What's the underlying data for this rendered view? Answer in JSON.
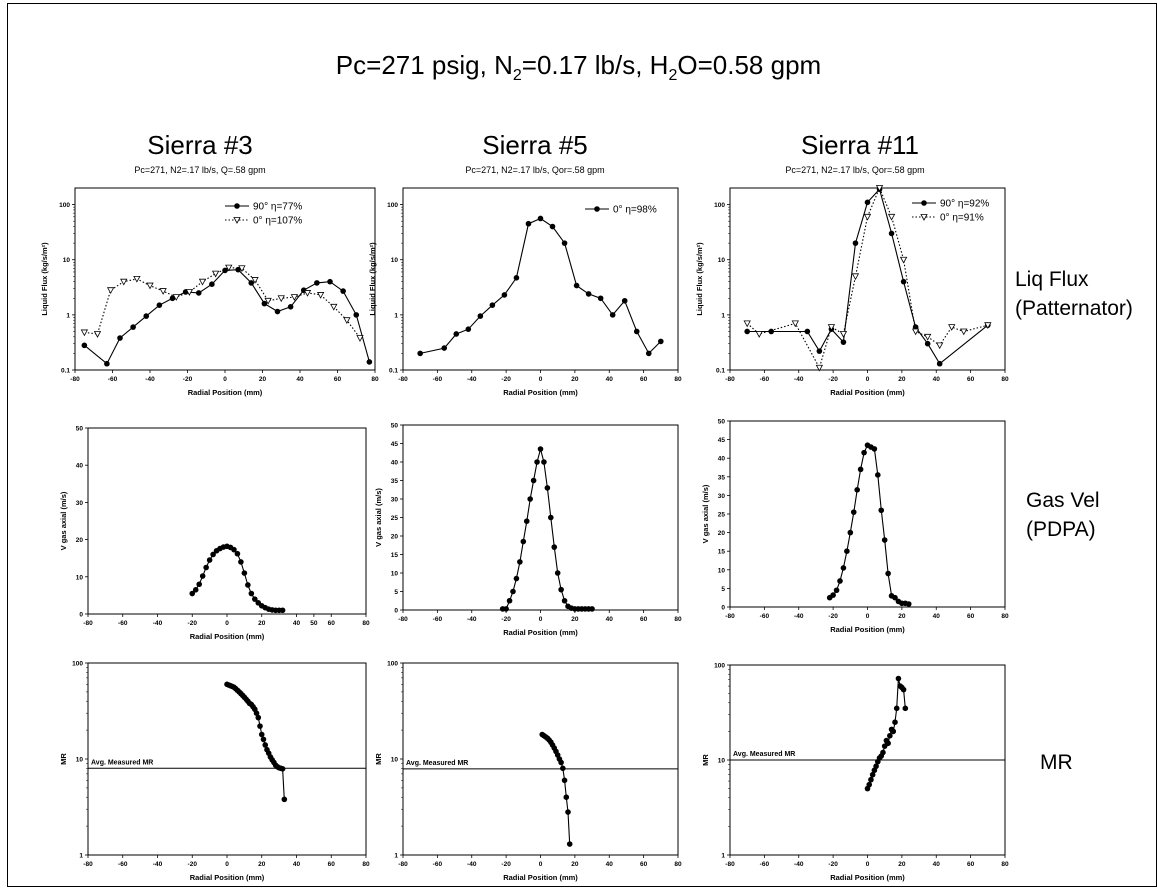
{
  "title": "Pc=271 psig, N2=0.17 lb/s, H2O=0.58 gpm",
  "title_parts": {
    "a": "Pc=271 psig, N",
    "b": "2",
    "c": "=0.17 lb/s, H",
    "d": "2",
    "e": "O=0.58 gpm"
  },
  "columns": [
    {
      "title": "Sierra #3",
      "subtitle": "Pc=271, N2=.17 lb/s, Q=.58 gpm"
    },
    {
      "title": "Sierra #5",
      "subtitle": "Pc=271, N2=.17 lb/s, Qor=.58 gpm"
    },
    {
      "title": "Sierra #11",
      "subtitle": "Pc=271, N2=.17 lb/s, Qor=.58 gpm"
    }
  ],
  "row_labels": [
    {
      "line1": "Liq Flux",
      "line2": "(Patternator)"
    },
    {
      "line1": "Gas Vel",
      "line2": "(PDPA)"
    },
    {
      "line1": "MR",
      "line2": ""
    }
  ],
  "chart_data": [
    {
      "id": "flux3",
      "type": "line",
      "scale": "log",
      "xlim": [
        -80,
        80
      ],
      "ylim": [
        0.1,
        200
      ],
      "xticks": [
        -80,
        -60,
        -40,
        -20,
        0,
        20,
        40,
        60,
        80
      ],
      "yticks": [
        0.1,
        1,
        10,
        100
      ],
      "yticklabels": [
        "0.1",
        "1",
        "10",
        "100"
      ],
      "xlabel": "Radial Position (mm)",
      "ylabel": "Liquid Flux (kg/s/m²)",
      "series": [
        {
          "name": "90° η=77%",
          "style": "solid",
          "marker": "circle",
          "x": [
            -75,
            -63,
            -56,
            -49,
            -42,
            -35,
            -28,
            -21,
            -14,
            -7,
            0,
            7,
            14,
            21,
            28,
            35,
            42,
            49,
            56,
            63,
            70,
            77
          ],
          "y": [
            0.28,
            0.13,
            0.38,
            0.6,
            0.95,
            1.5,
            2.0,
            2.6,
            2.5,
            3.6,
            6.4,
            6.6,
            3.8,
            1.6,
            1.15,
            1.4,
            2.8,
            3.8,
            4.0,
            2.7,
            1.0,
            0.14
          ]
        },
        {
          "name": "0° η=107%",
          "style": "dotted",
          "marker": "triangle",
          "x": [
            -75,
            -68,
            -61,
            -54,
            -47,
            -40,
            -33,
            -26,
            -19,
            -12,
            -5,
            2,
            9,
            16,
            23,
            30,
            37,
            44,
            51,
            58,
            65,
            72
          ],
          "y": [
            0.48,
            0.45,
            2.8,
            4.0,
            4.5,
            3.4,
            2.7,
            2.1,
            2.6,
            4.0,
            5.6,
            7.2,
            7.0,
            4.3,
            1.8,
            2.0,
            2.1,
            2.5,
            2.3,
            1.4,
            0.8,
            0.38
          ]
        }
      ]
    },
    {
      "id": "flux5",
      "type": "line",
      "scale": "log",
      "xlim": [
        -80,
        80
      ],
      "ylim": [
        0.1,
        200
      ],
      "xticks": [
        -80,
        -60,
        -40,
        -20,
        0,
        20,
        40,
        60,
        80
      ],
      "yticks": [
        0.1,
        1,
        10,
        100
      ],
      "yticklabels": [
        "0.1",
        "1",
        "10",
        "100"
      ],
      "xlabel": "Radial Position (mm)",
      "ylabel": "Liquid Flux (kg/s/m²)",
      "series": [
        {
          "name": "0° η=98%",
          "style": "solid",
          "marker": "circle",
          "x": [
            -70,
            -56,
            -49,
            -42,
            -35,
            -28,
            -21,
            -14,
            -7,
            0,
            7,
            14,
            21,
            28,
            35,
            42,
            49,
            56,
            63,
            70
          ],
          "y": [
            0.2,
            0.25,
            0.45,
            0.55,
            0.95,
            1.5,
            2.3,
            4.7,
            45,
            56,
            40,
            20,
            3.4,
            2.4,
            2.0,
            1.0,
            1.8,
            0.5,
            0.2,
            0.33
          ]
        }
      ]
    },
    {
      "id": "flux11",
      "type": "line",
      "scale": "log",
      "xlim": [
        -80,
        80
      ],
      "ylim": [
        0.1,
        200
      ],
      "xticks": [
        -80,
        -60,
        -40,
        -20,
        0,
        20,
        40,
        60,
        80
      ],
      "yticks": [
        0.1,
        1,
        10,
        100
      ],
      "yticklabels": [
        "0.1",
        "1",
        "10",
        "100"
      ],
      "xlabel": "Radial Position (mm)",
      "ylabel": "Liquid Flux (kg/s/m²)",
      "series": [
        {
          "name": "90° η=92%",
          "style": "solid",
          "marker": "circle",
          "x": [
            -70,
            -56,
            -35,
            -28,
            -21,
            -14,
            -7,
            0,
            7,
            14,
            21,
            28,
            35,
            42,
            70
          ],
          "y": [
            0.5,
            0.5,
            0.5,
            0.22,
            0.55,
            0.32,
            20,
            110,
            190,
            30,
            4,
            0.6,
            0.3,
            0.13,
            0.65
          ]
        },
        {
          "name": "0° η=91%",
          "style": "dotted",
          "marker": "triangle",
          "x": [
            -70,
            -63,
            -42,
            -28,
            -21,
            -14,
            -7,
            0,
            7,
            14,
            21,
            28,
            35,
            42,
            49,
            56,
            70
          ],
          "y": [
            0.7,
            0.45,
            0.7,
            0.11,
            0.6,
            0.45,
            5,
            60,
            200,
            60,
            10,
            0.5,
            0.4,
            0.28,
            0.6,
            0.5,
            0.65
          ]
        }
      ]
    },
    {
      "id": "vel3",
      "type": "line",
      "scale": "linear",
      "xlim": [
        -80,
        80
      ],
      "ylim": [
        0,
        50
      ],
      "xticks": [
        -80,
        -60,
        -40,
        -20,
        0,
        20,
        40,
        50,
        60,
        80
      ],
      "yticks": [
        0,
        10,
        20,
        30,
        40,
        50
      ],
      "yticklabels": [
        "0",
        "10",
        "20",
        "30",
        "40",
        "50"
      ],
      "xlabel": "Radial Position (mm)",
      "ylabel": "V gas axial (m/s)",
      "series": [
        {
          "name": "",
          "style": "solid",
          "marker": "circle",
          "x": [
            -20,
            -18,
            -16,
            -14,
            -12,
            -10,
            -8,
            -6,
            -4,
            -2,
            0,
            2,
            4,
            6,
            8,
            10,
            12,
            14,
            16,
            18,
            20,
            22,
            24,
            26,
            28,
            30,
            32
          ],
          "y": [
            5.5,
            6.5,
            8.0,
            10.2,
            12.5,
            14.5,
            16.0,
            17.0,
            17.6,
            18.0,
            18.2,
            17.9,
            17.3,
            16.2,
            14.0,
            11.0,
            7.8,
            5.5,
            4.0,
            3.0,
            2.2,
            1.7,
            1.3,
            1.1,
            1.0,
            1.0,
            1.0
          ]
        }
      ]
    },
    {
      "id": "vel5",
      "type": "line",
      "scale": "linear",
      "xlim": [
        -80,
        80
      ],
      "ylim": [
        0,
        50
      ],
      "xticks": [
        -80,
        -60,
        -40,
        -20,
        0,
        20,
        40,
        60,
        80
      ],
      "yticks": [
        0,
        5,
        10,
        15,
        20,
        25,
        30,
        35,
        40,
        45,
        50
      ],
      "yticklabels": [
        "0",
        "5",
        "10",
        "15",
        "20",
        "25",
        "30",
        "35",
        "40",
        "45",
        "50"
      ],
      "xlabel": "Radial Position (mm)",
      "ylabel": "V gas axial (m/s)",
      "series": [
        {
          "name": "",
          "style": "solid",
          "marker": "circle",
          "x": [
            -22,
            -20,
            -18,
            -16,
            -14,
            -12,
            -10,
            -8,
            -6,
            -4,
            -2,
            0,
            2,
            4,
            6,
            8,
            10,
            12,
            14,
            16,
            18,
            20,
            22,
            24,
            26,
            28,
            30
          ],
          "y": [
            0.3,
            0.3,
            2.5,
            5.0,
            8.5,
            13.0,
            18.5,
            24.0,
            30.0,
            35.0,
            40.0,
            43.5,
            40.0,
            33.0,
            25.0,
            17.0,
            10.0,
            5.5,
            2.5,
            1.0,
            0.5,
            0.3,
            0.3,
            0.3,
            0.3,
            0.3,
            0.3
          ]
        }
      ]
    },
    {
      "id": "vel11",
      "type": "line",
      "scale": "linear",
      "xlim": [
        -80,
        80
      ],
      "ylim": [
        0,
        50
      ],
      "xticks": [
        -80,
        -60,
        -40,
        -20,
        0,
        20,
        40,
        60,
        80
      ],
      "yticks": [
        0,
        5,
        10,
        15,
        20,
        25,
        30,
        35,
        40,
        45,
        50
      ],
      "yticklabels": [
        "0",
        "5",
        "10",
        "15",
        "20",
        "25",
        "30",
        "35",
        "40",
        "45",
        "50"
      ],
      "xlabel": "Radial Position (mm)",
      "ylabel": "V gas axial (m/s)",
      "series": [
        {
          "name": "",
          "style": "solid",
          "marker": "circle",
          "x": [
            -22,
            -20,
            -18,
            -16,
            -14,
            -12,
            -10,
            -8,
            -6,
            -4,
            -2,
            0,
            2,
            4,
            6,
            8,
            10,
            12,
            14,
            16,
            18,
            20,
            22,
            24
          ],
          "y": [
            2.5,
            3.2,
            4.5,
            7.0,
            10.5,
            15.0,
            20.0,
            25.5,
            31.5,
            37.0,
            41.5,
            43.5,
            43.0,
            42.5,
            35.5,
            26.0,
            18.0,
            9.0,
            3.0,
            2.5,
            1.5,
            1.0,
            1.0,
            0.8
          ]
        }
      ]
    },
    {
      "id": "mr3",
      "type": "line",
      "scale": "log",
      "xlim": [
        -80,
        80
      ],
      "ylim": [
        1,
        100
      ],
      "xticks": [
        -80,
        -60,
        -40,
        -20,
        0,
        20,
        40,
        60,
        80
      ],
      "yticks": [
        1,
        10,
        100
      ],
      "yticklabels": [
        "1",
        "10",
        "100"
      ],
      "xlabel": "Radial Position (mm)",
      "ylabel": "MR",
      "hline": 8.0,
      "hline_label": "Avg. Measured MR",
      "series": [
        {
          "name": "",
          "style": "solid",
          "marker": "circle",
          "x": [
            0,
            1,
            2,
            3,
            4,
            5,
            6,
            7,
            8,
            9,
            10,
            11,
            12,
            13,
            14,
            15,
            16,
            17,
            18,
            19,
            20,
            21,
            22,
            23,
            24,
            25,
            26,
            27,
            28,
            29,
            30,
            31,
            32,
            33
          ],
          "y": [
            60,
            59,
            58,
            57,
            56,
            54,
            52,
            50,
            48,
            46,
            44,
            42,
            40,
            38,
            37,
            35,
            33,
            30,
            27,
            22,
            18,
            16,
            14,
            12.5,
            11.5,
            10.5,
            9.8,
            9.2,
            8.6,
            8.3,
            8.1,
            8.0,
            7.9,
            3.8
          ]
        }
      ]
    },
    {
      "id": "mr5",
      "type": "line",
      "scale": "log",
      "xlim": [
        -80,
        80
      ],
      "ylim": [
        1,
        100
      ],
      "xticks": [
        -80,
        -60,
        -40,
        -20,
        0,
        20,
        40,
        60,
        80
      ],
      "yticks": [
        1,
        10,
        100
      ],
      "yticklabels": [
        "1",
        "10",
        "100"
      ],
      "xlabel": "Radial Position (mm)",
      "ylabel": "MR",
      "hline": 7.9,
      "hline_label": "Avg. Measured MR",
      "series": [
        {
          "name": "",
          "style": "solid",
          "marker": "circle",
          "x": [
            1,
            2,
            3,
            4,
            5,
            6,
            7,
            8,
            9,
            10,
            11,
            12,
            13,
            14,
            15,
            16,
            17
          ],
          "y": [
            18,
            17.5,
            17,
            16.5,
            15.8,
            15,
            14,
            13,
            12,
            11,
            10,
            9.2,
            8.0,
            6.0,
            4.0,
            2.8,
            1.3
          ]
        }
      ]
    },
    {
      "id": "mr11",
      "type": "line",
      "scale": "log",
      "xlim": [
        -80,
        80
      ],
      "ylim": [
        1,
        100
      ],
      "xticks": [
        -80,
        -60,
        -40,
        -20,
        0,
        20,
        40,
        60,
        80
      ],
      "yticks": [
        1,
        10,
        100
      ],
      "yticklabels": [
        "1",
        "10",
        "100"
      ],
      "xlabel": "Radial Position (mm)",
      "ylabel": "MR",
      "hline": 10.0,
      "hline_label": "Avg. Measured MR",
      "series": [
        {
          "name": "",
          "style": "solid",
          "marker": "circle",
          "x": [
            0,
            1,
            2,
            3,
            4,
            5,
            6,
            7,
            8,
            9,
            10,
            11,
            12,
            13,
            14,
            15,
            16,
            17,
            18,
            19,
            20,
            21,
            22
          ],
          "y": [
            5,
            5.5,
            6.2,
            7,
            7.8,
            8.6,
            9.6,
            10.5,
            11,
            12,
            14,
            16,
            15,
            18,
            21,
            20,
            25,
            35,
            72,
            60,
            58,
            55,
            35
          ]
        }
      ]
    }
  ]
}
